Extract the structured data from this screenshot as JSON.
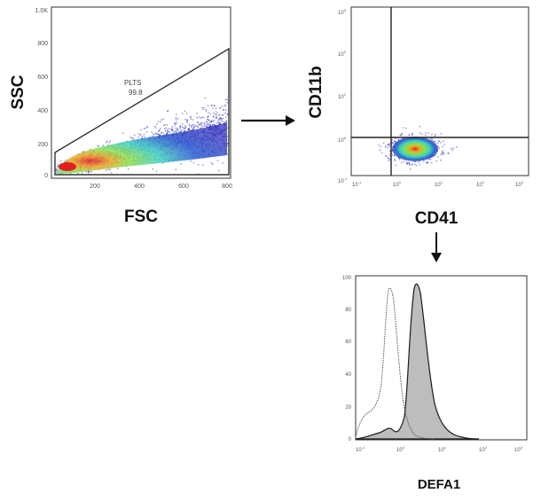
{
  "scatter_fsc_ssc": {
    "x_label": "FSC",
    "y_label": "SSC",
    "x_ticks": [
      "200",
      "400",
      "600",
      "800"
    ],
    "y_ticks": [
      "0",
      "200",
      "400",
      "600",
      "800",
      "1.0K"
    ],
    "gate_name": "PLTS",
    "gate_value": "99.8"
  },
  "scatter_cd41_cd11b": {
    "x_label": "CD41",
    "y_label": "CD11b",
    "x_ticks": [
      "10",
      "10",
      "10",
      "10",
      "10"
    ],
    "x_exps": [
      "-1",
      "0",
      "1",
      "2",
      "3"
    ],
    "y_ticks": [
      "10",
      "10",
      "10",
      "10",
      "10"
    ],
    "y_exps": [
      "-1",
      "0",
      "1",
      "2",
      "3"
    ]
  },
  "histogram_defa1": {
    "x_label": "DEFA1",
    "y_ticks": [
      "0",
      "20",
      "40",
      "60",
      "80",
      "100"
    ],
    "x_ticks": [
      "10",
      "10",
      "10",
      "10",
      "10"
    ],
    "x_exps": [
      "-1",
      "0",
      "1",
      "2",
      "3"
    ]
  },
  "colors": {
    "density_low": "#2a2ab8",
    "density_mid": "#3fd0c0",
    "density_high_green": "#8ee04a",
    "density_peak": "#e02020",
    "hist_fill": "#bdbdbd",
    "axis": "#333333"
  }
}
